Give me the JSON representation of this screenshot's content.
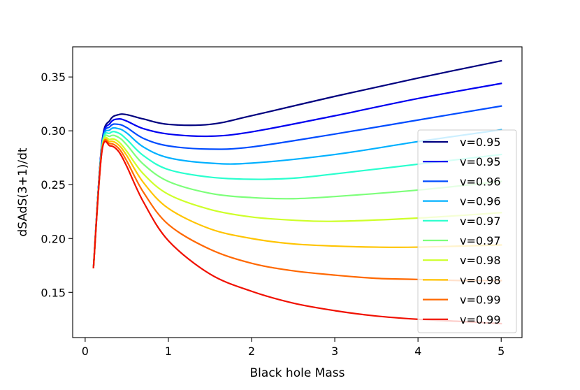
{
  "chart_data": {
    "type": "line",
    "title": "",
    "xlabel": "Black hole Mass",
    "ylabel": "dSAdS(3+1)/dt",
    "xlim": [
      -0.15,
      5.25
    ],
    "ylim": [
      0.108,
      0.378
    ],
    "xticks": [
      0,
      1,
      2,
      3,
      4,
      5
    ],
    "xtick_labels": [
      "0",
      "1",
      "2",
      "3",
      "4",
      "5"
    ],
    "yticks": [
      0.15,
      0.2,
      0.25,
      0.3,
      0.35
    ],
    "ytick_labels": [
      "0.15",
      "0.20",
      "0.25",
      "0.30",
      "0.35"
    ],
    "grid": false,
    "legend_position": "right",
    "series": [
      {
        "name": "v=0.95",
        "color": "#00007f",
        "x": [
          0.1,
          0.2,
          0.3,
          0.4,
          0.5,
          0.7,
          1.0,
          1.5,
          2.0,
          3.0,
          4.0,
          5.0
        ],
        "y": [
          0.173,
          0.288,
          0.31,
          0.315,
          0.315,
          0.311,
          0.306,
          0.306,
          0.314,
          0.332,
          0.349,
          0.365
        ]
      },
      {
        "name": "v=0.95",
        "color": "#0000f0",
        "x": [
          0.1,
          0.2,
          0.3,
          0.4,
          0.5,
          0.7,
          1.0,
          1.5,
          2.0,
          3.0,
          4.0,
          5.0
        ],
        "y": [
          0.173,
          0.287,
          0.307,
          0.311,
          0.309,
          0.302,
          0.297,
          0.295,
          0.299,
          0.314,
          0.33,
          0.344
        ]
      },
      {
        "name": "v=0.96",
        "color": "#004cff",
        "x": [
          0.1,
          0.2,
          0.3,
          0.4,
          0.5,
          0.7,
          1.0,
          1.5,
          2.0,
          3.0,
          4.0,
          5.0
        ],
        "y": [
          0.173,
          0.286,
          0.304,
          0.306,
          0.303,
          0.293,
          0.286,
          0.283,
          0.285,
          0.297,
          0.31,
          0.323
        ]
      },
      {
        "name": "v=0.96",
        "color": "#00b0ff",
        "x": [
          0.1,
          0.2,
          0.3,
          0.4,
          0.5,
          0.7,
          1.0,
          1.5,
          2.0,
          3.0,
          4.0,
          5.0
        ],
        "y": [
          0.173,
          0.285,
          0.301,
          0.302,
          0.298,
          0.285,
          0.275,
          0.27,
          0.27,
          0.278,
          0.29,
          0.301
        ]
      },
      {
        "name": "v=0.97",
        "color": "#29ffce",
        "x": [
          0.1,
          0.2,
          0.3,
          0.4,
          0.5,
          0.7,
          1.0,
          1.5,
          2.0,
          2.5,
          3.0,
          4.0,
          5.0
        ],
        "y": [
          0.173,
          0.284,
          0.298,
          0.298,
          0.292,
          0.277,
          0.264,
          0.257,
          0.255,
          0.256,
          0.26,
          0.269,
          0.278
        ]
      },
      {
        "name": "v=0.97",
        "color": "#7dff7a",
        "x": [
          0.1,
          0.2,
          0.3,
          0.4,
          0.5,
          0.7,
          1.0,
          1.5,
          2.0,
          2.5,
          3.0,
          4.0,
          5.0
        ],
        "y": [
          0.173,
          0.283,
          0.295,
          0.294,
          0.287,
          0.269,
          0.253,
          0.242,
          0.238,
          0.237,
          0.239,
          0.245,
          0.253
        ]
      },
      {
        "name": "v=0.98",
        "color": "#ceff29",
        "x": [
          0.1,
          0.2,
          0.3,
          0.4,
          0.5,
          0.7,
          1.0,
          1.5,
          2.0,
          2.5,
          3.0,
          4.0,
          5.0
        ],
        "y": [
          0.173,
          0.282,
          0.292,
          0.29,
          0.281,
          0.26,
          0.241,
          0.227,
          0.22,
          0.217,
          0.216,
          0.219,
          0.224
        ]
      },
      {
        "name": "v=0.98",
        "color": "#ffc400",
        "x": [
          0.1,
          0.2,
          0.3,
          0.4,
          0.5,
          0.7,
          1.0,
          1.5,
          2.0,
          2.5,
          3.0,
          3.5,
          4.0,
          5.0
        ],
        "y": [
          0.173,
          0.281,
          0.29,
          0.287,
          0.277,
          0.252,
          0.228,
          0.209,
          0.2,
          0.195,
          0.193,
          0.192,
          0.192,
          0.194
        ]
      },
      {
        "name": "v=0.99",
        "color": "#ff6800",
        "x": [
          0.1,
          0.2,
          0.3,
          0.4,
          0.5,
          0.7,
          1.0,
          1.5,
          2.0,
          2.5,
          3.0,
          3.5,
          4.0,
          4.5,
          5.0
        ],
        "y": [
          0.173,
          0.281,
          0.288,
          0.284,
          0.272,
          0.243,
          0.213,
          0.19,
          0.177,
          0.17,
          0.166,
          0.163,
          0.162,
          0.161,
          0.161
        ]
      },
      {
        "name": "v=0.99",
        "color": "#f01000",
        "x": [
          0.1,
          0.2,
          0.3,
          0.4,
          0.5,
          0.7,
          1.0,
          1.5,
          2.0,
          2.5,
          3.0,
          3.5,
          4.0,
          4.5,
          5.0
        ],
        "y": [
          0.173,
          0.28,
          0.286,
          0.281,
          0.267,
          0.234,
          0.198,
          0.167,
          0.151,
          0.14,
          0.133,
          0.128,
          0.125,
          0.123,
          0.121
        ]
      }
    ]
  }
}
